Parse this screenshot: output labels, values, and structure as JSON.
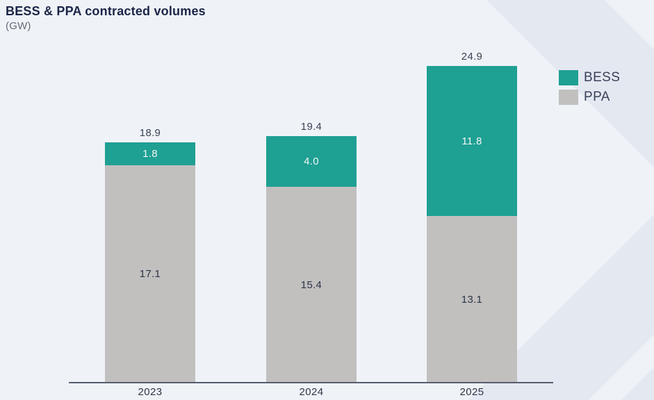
{
  "header": {
    "title": "BESS & PPA contracted volumes",
    "subtitle": "(GW)"
  },
  "legend": {
    "items": [
      {
        "label": "BESS",
        "color": "#1ea093"
      },
      {
        "label": "PPA",
        "color": "#c1c0bf"
      }
    ]
  },
  "chart_data": {
    "type": "bar",
    "stacked": true,
    "title": "BESS & PPA contracted volumes",
    "unit": "GW",
    "xlabel": "",
    "ylabel": "",
    "grid": false,
    "y_axis_shown": false,
    "legend_position": "top-right",
    "categories": [
      "2023",
      "2024",
      "2025"
    ],
    "series": [
      {
        "name": "BESS",
        "color": "#1ea093",
        "label_color": "#f4f7f7",
        "values": [
          1.8,
          4.0,
          11.8
        ],
        "value_labels": [
          "1.8",
          "4.0",
          "11.8"
        ]
      },
      {
        "name": "PPA",
        "color": "#c1c0bf",
        "label_color": "#2d3447",
        "values": [
          17.1,
          15.4,
          13.1
        ],
        "value_labels": [
          "17.1",
          "15.4",
          "13.1"
        ]
      }
    ],
    "totals": [
      18.9,
      19.4,
      24.9
    ],
    "total_labels": [
      "18.9",
      "19.4",
      "24.9"
    ]
  },
  "colors": {
    "background": "#eff3f8",
    "background_stripe": "#e4e8f1",
    "axis_line": "#565d6e",
    "title_text": "#1b2547",
    "subtitle_text": "#666c78",
    "label_text": "#3a4254"
  }
}
